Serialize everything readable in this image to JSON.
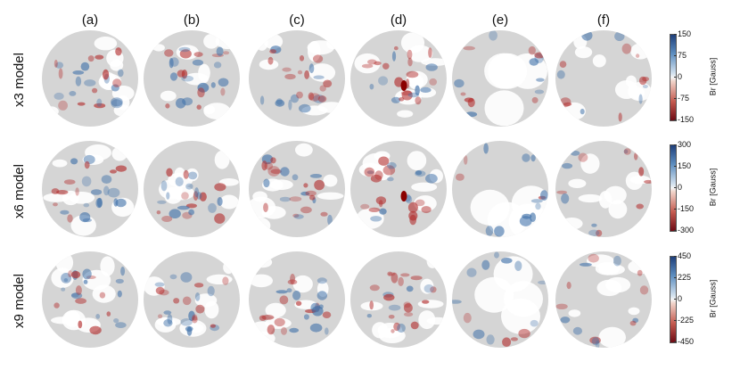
{
  "columns": [
    "(a)",
    "(b)",
    "(c)",
    "(d)",
    "(e)",
    "(f)"
  ],
  "rows": [
    {
      "label": "x3 model",
      "colorbar": {
        "unit": "Br [Gauss]",
        "ticks": [
          "150",
          "75",
          "0",
          "-75",
          "-150"
        ]
      }
    },
    {
      "label": "x6 model",
      "colorbar": {
        "unit": "Br [Gauss]",
        "ticks": [
          "300",
          "150",
          "0",
          "-150",
          "-300"
        ]
      }
    },
    {
      "label": "x9 model",
      "colorbar": {
        "unit": "Br [Gauss]",
        "ticks": [
          "450",
          "225",
          "0",
          "-225",
          "-450"
        ]
      }
    }
  ],
  "colors": {
    "negative": "#b22b2b",
    "positive": "#3d6fa8",
    "quiet": "#d5d5d5",
    "white": "#ffffff",
    "strong_negative": "#8b0000"
  }
}
